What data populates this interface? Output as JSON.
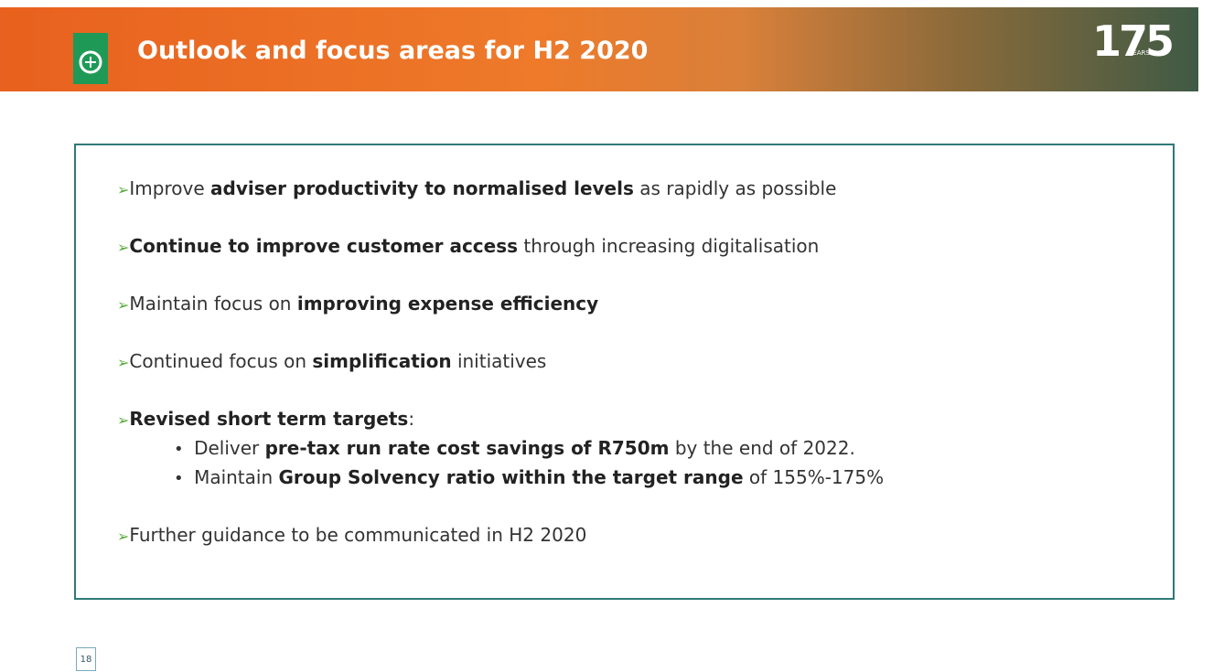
{
  "header": {
    "title": "Outlook and focus areas for H2 2020",
    "badge": "175",
    "badge_caption": "YEARS"
  },
  "bullets": [
    {
      "parts": [
        {
          "text": "Improve ",
          "bold": false
        },
        {
          "text": "adviser productivity to normalised levels",
          "bold": true
        },
        {
          "text": " as rapidly as possible",
          "bold": false
        }
      ]
    },
    {
      "parts": [
        {
          "text": "Continue to improve customer access",
          "bold": true
        },
        {
          "text": " through increasing digitalisation",
          "bold": false
        }
      ]
    },
    {
      "parts": [
        {
          "text": "Maintain focus on ",
          "bold": false
        },
        {
          "text": "improving expense efficiency",
          "bold": true
        }
      ]
    },
    {
      "parts": [
        {
          "text": "Continued focus on ",
          "bold": false
        },
        {
          "text": "simplification",
          "bold": true
        },
        {
          "text": " initiatives",
          "bold": false
        }
      ]
    },
    {
      "parts": [
        {
          "text": "Revised short term targets",
          "bold": true
        },
        {
          "text": ":",
          "bold": false
        }
      ],
      "sub": [
        {
          "parts": [
            {
              "text": "Deliver ",
              "bold": false
            },
            {
              "text": "pre-tax run rate cost savings of R750m",
              "bold": true
            },
            {
              "text": " by the end of 2022.",
              "bold": false
            }
          ]
        },
        {
          "parts": [
            {
              "text": "Maintain ",
              "bold": false
            },
            {
              "text": "Group Solvency ratio within the target range",
              "bold": true
            },
            {
              "text": " of 155%-175%",
              "bold": false
            }
          ]
        }
      ]
    },
    {
      "parts": [
        {
          "text": "Further guidance to be communicated in H2 2020",
          "bold": false
        }
      ]
    }
  ],
  "page_number": "18"
}
